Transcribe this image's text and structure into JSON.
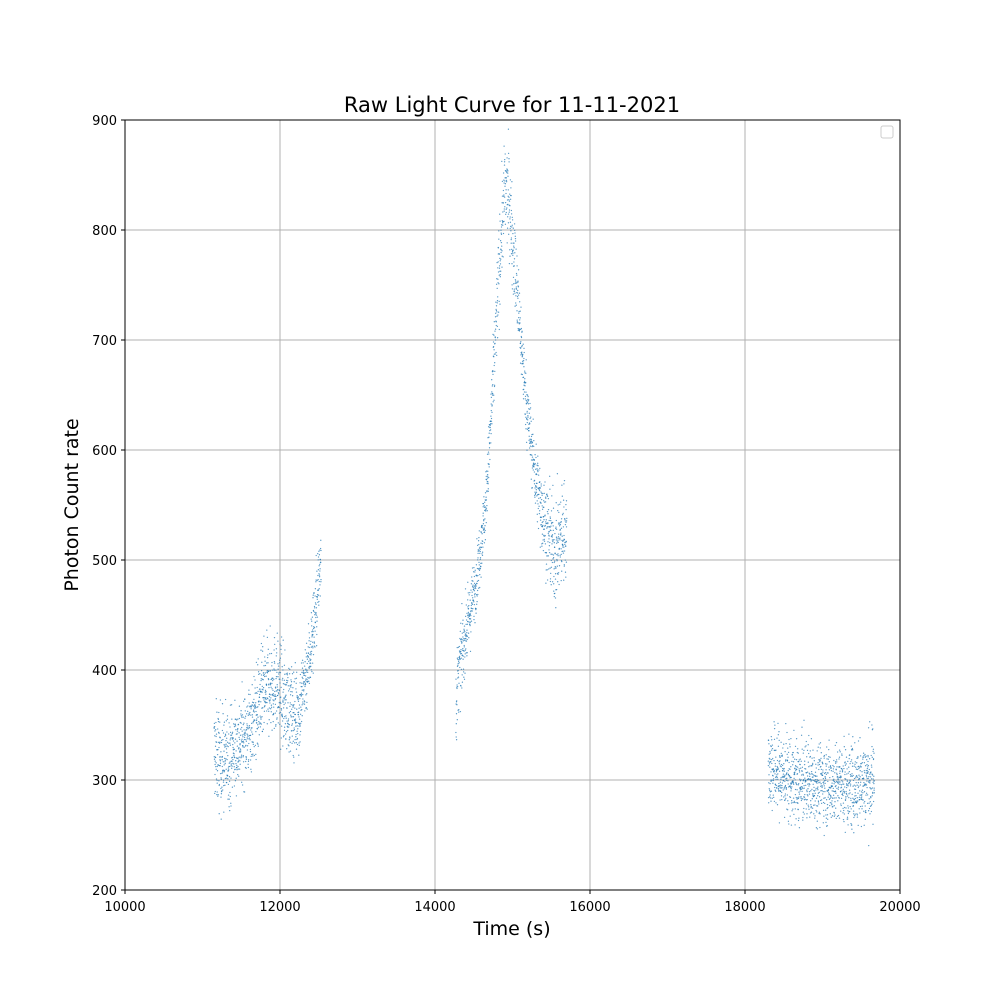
{
  "chart_data": {
    "type": "scatter",
    "title": "Raw Light Curve for 11-11-2021",
    "xlabel": "Time (s)",
    "ylabel": "Photon Count rate",
    "xlim": [
      10000,
      20000
    ],
    "ylim": [
      200,
      900
    ],
    "x_ticks": [
      "10000",
      "12000",
      "14000",
      "16000",
      "18000",
      "20000"
    ],
    "y_ticks": [
      "200",
      "300",
      "400",
      "500",
      "600",
      "700",
      "800",
      "900"
    ],
    "grid": true,
    "legend": {
      "location": "upper-right",
      "entries": []
    },
    "marker_color": "#1f77b4",
    "series": [
      {
        "segments": [
          {
            "x": [
              11150,
              11250,
              11350,
              11450,
              11550,
              11650,
              11750,
              11850,
              11950,
              12050,
              12150,
              12250,
              12300,
              12350,
              12400,
              12450,
              12500,
              12530
            ],
            "y": [
              325,
              318,
              322,
              332,
              340,
              352,
              372,
              385,
              388,
              372,
              362,
              362,
              385,
              400,
              420,
              448,
              480,
              510
            ],
            "spread": [
              22,
              24,
              22,
              20,
              20,
              20,
              22,
              22,
              22,
              22,
              20,
              20,
              18,
              18,
              18,
              20,
              20,
              18
            ]
          },
          {
            "x": [
              14270,
              14300,
              14350,
              14400,
              14450,
              14500,
              14550,
              14600,
              14650,
              14700,
              14750,
              14800,
              14850,
              14900,
              14950,
              15000,
              15050,
              15100,
              15150,
              15200,
              15250,
              15300,
              15350,
              15400,
              15450,
              15500,
              15550,
              15600,
              15650,
              15700
            ],
            "y": [
              365,
              395,
              415,
              435,
              450,
              470,
              490,
              520,
              545,
              600,
              660,
              730,
              790,
              835,
              830,
              795,
              750,
              710,
              665,
              630,
              600,
              575,
              555,
              540,
              525,
              515,
              505,
              515,
              525,
              530
            ],
            "spread": [
              20,
              18,
              16,
              15,
              15,
              14,
              14,
              14,
              14,
              16,
              20,
              22,
              22,
              22,
              22,
              22,
              20,
              18,
              16,
              16,
              16,
              16,
              18,
              20,
              20,
              22,
              24,
              24,
              22,
              20
            ]
          },
          {
            "x": [
              18300,
              18400,
              18500,
              18600,
              18700,
              18800,
              18900,
              19000,
              19100,
              19200,
              19300,
              19400,
              19500,
              19600,
              19670
            ],
            "y": [
              312,
              308,
              304,
              300,
              296,
              300,
              298,
              297,
              296,
              296,
              295,
              294,
              298,
              300,
              302
            ],
            "spread": [
              20,
              20,
              20,
              19,
              19,
              19,
              18,
              18,
              18,
              18,
              19,
              20,
              20,
              22,
              22
            ]
          }
        ]
      }
    ]
  }
}
